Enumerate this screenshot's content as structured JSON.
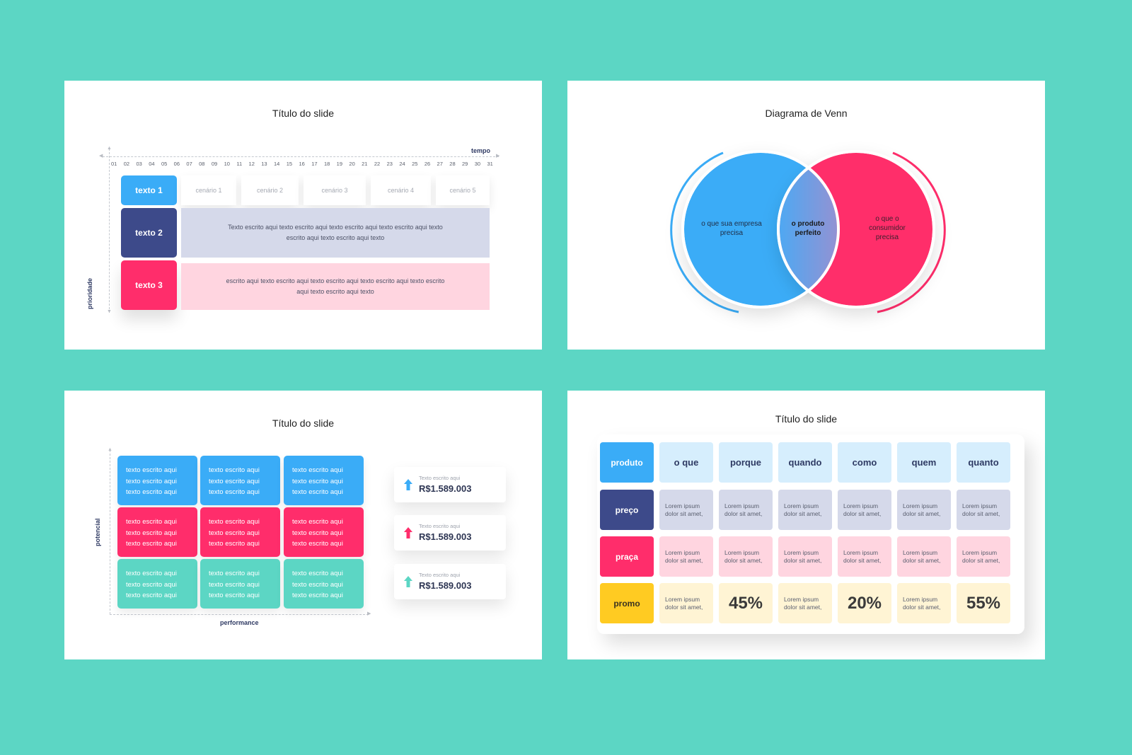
{
  "colors": {
    "background": "#5CD6C4",
    "blue": "#3AACF7",
    "navy": "#3D4A8A",
    "pink": "#FF2D6B",
    "teal": "#5CD6C4",
    "yellow": "#FFCB22",
    "light_blue": "#D6EEFD",
    "light_navy": "#D5D9EA",
    "light_pink": "#FFD5E0",
    "light_yellow": "#FFF4D4"
  },
  "slide1": {
    "title": "Título do slide",
    "x_axis_label": "tempo",
    "y_axis_label": "prioridade",
    "ticks": [
      "01",
      "02",
      "03",
      "04",
      "05",
      "06",
      "07",
      "08",
      "09",
      "10",
      "11",
      "12",
      "13",
      "14",
      "15",
      "16",
      "17",
      "18",
      "19",
      "20",
      "21",
      "22",
      "23",
      "24",
      "25",
      "26",
      "27",
      "28",
      "29",
      "30",
      "31"
    ],
    "rows": [
      {
        "label": "texto 1",
        "color": "#3AACF7"
      },
      {
        "label": "texto 2",
        "color": "#3D4A8A"
      },
      {
        "label": "texto 3",
        "color": "#FF2D6B"
      }
    ],
    "scenarios": [
      "cenário 1",
      "cenário 2",
      "cenário 3",
      "cenário 4",
      "cenário 5"
    ],
    "band2_text": "Texto escrito aqui texto escrito aqui texto escrito aqui texto escrito aqui texto escrito aqui texto escrito aqui texto",
    "band3_text": "escrito aqui texto escrito aqui texto escrito aqui texto escrito aqui texto escrito aqui texto escrito aqui texto"
  },
  "slide2": {
    "title": "Diagrama de Venn",
    "left_circle": "o que sua empresa precisa",
    "intersection": "o produto perfeito",
    "right_circle": "o que o consumidor precisa"
  },
  "slide3": {
    "title": "Título do slide",
    "x_axis_label": "performance",
    "y_axis_label": "potencial",
    "grid": [
      {
        "color": "#3AACF7",
        "cells": [
          [
            "texto escrito aqui",
            "texto escrito aqui",
            "texto escrito aqui"
          ],
          [
            "texto escrito aqui",
            "texto escrito aqui",
            "texto escrito aqui"
          ],
          [
            "texto escrito aqui",
            "texto escrito aqui",
            "texto escrito aqui"
          ]
        ]
      },
      {
        "color": "#FF2D6B",
        "cells": [
          [
            "texto escrito aqui",
            "texto escrito aqui",
            "texto escrito aqui"
          ],
          [
            "texto escrito aqui",
            "texto escrito aqui",
            "texto escrito aqui"
          ],
          [
            "texto escrito aqui",
            "texto escrito aqui",
            "texto escrito aqui"
          ]
        ]
      },
      {
        "color": "#5CD6C4",
        "cells": [
          [
            "texto escrito aqui",
            "texto escrito aqui",
            "texto escrito aqui"
          ],
          [
            "texto escrito aqui",
            "texto escrito aqui",
            "texto escrito aqui"
          ],
          [
            "texto escrito aqui",
            "texto escrito aqui",
            "texto escrito aqui"
          ]
        ]
      }
    ],
    "kpis": [
      {
        "caption": "Texto escrito aqui",
        "value": "R$1.589.003",
        "icon": "arrow-up-icon",
        "color": "#3AACF7"
      },
      {
        "caption": "Texto escrito aqui",
        "value": "R$1.589.003",
        "icon": "arrow-up-icon",
        "color": "#FF2D6B"
      },
      {
        "caption": "Texto escrito aqui",
        "value": "R$1.589.003",
        "icon": "arrow-up-icon",
        "color": "#5CD6C4"
      }
    ]
  },
  "slide4": {
    "title": "Título do slide",
    "corner": "produto",
    "headers": [
      "o que",
      "porque",
      "quando",
      "como",
      "quem",
      "quanto"
    ],
    "rows": [
      {
        "label": "preço",
        "cells": [
          "Lorem ipsum dolor sit amet,",
          "Lorem ipsum dolor sit amet,",
          "Lorem ipsum dolor sit amet,",
          "Lorem ipsum dolor sit amet,",
          "Lorem ipsum dolor sit amet,",
          "Lorem ipsum dolor sit amet,"
        ]
      },
      {
        "label": "praça",
        "cells": [
          "Lorem ipsum dolor sit amet,",
          "Lorem ipsum dolor sit amet,",
          "Lorem ipsum dolor sit amet,",
          "Lorem ipsum dolor sit amet,",
          "Lorem ipsum dolor sit amet,",
          "Lorem ipsum dolor sit amet,"
        ]
      },
      {
        "label": "promo",
        "cells": [
          "Lorem ipsum dolor sit amet,",
          "45%",
          "Lorem ipsum dolor sit amet,",
          "20%",
          "Lorem ipsum dolor sit amet,",
          "55%"
        ]
      }
    ]
  }
}
